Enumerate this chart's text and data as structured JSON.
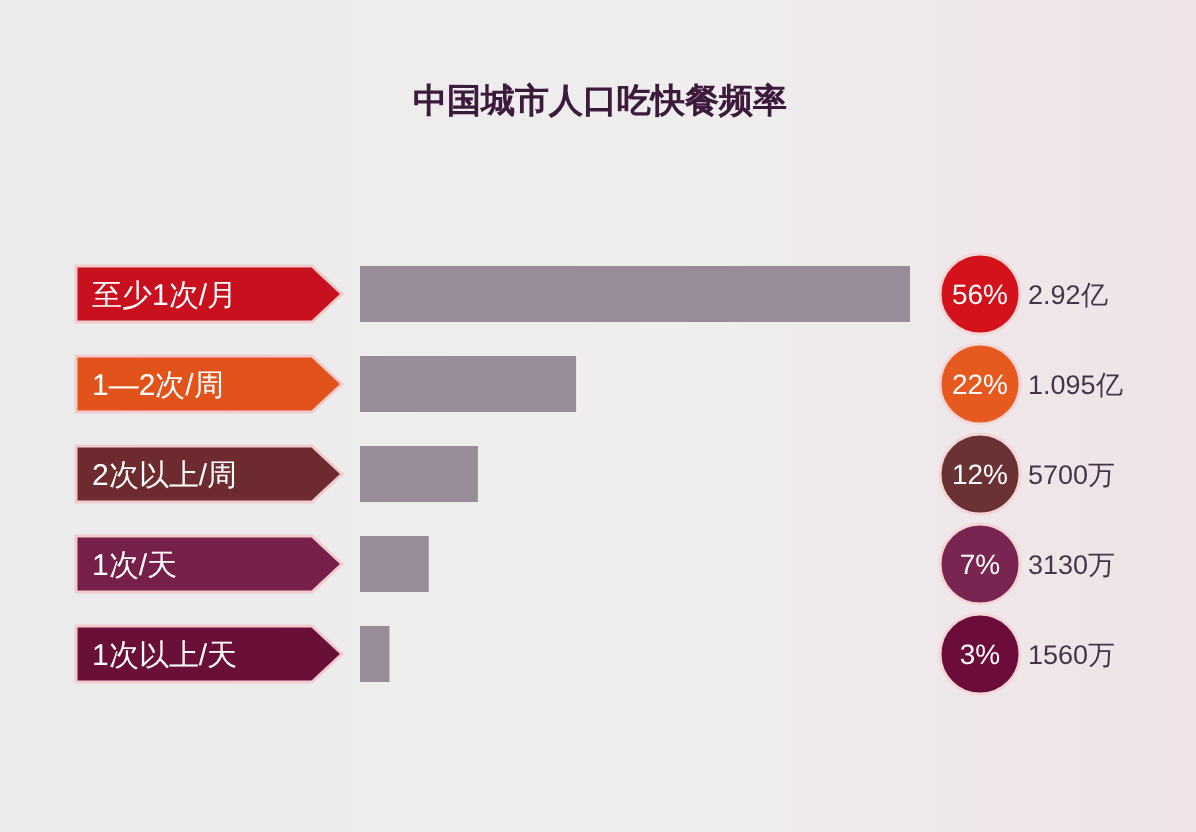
{
  "chart_data": {
    "type": "bar",
    "orientation": "horizontal",
    "title": "中国城市人口吃快餐频率",
    "categories": [
      "至少1次/月",
      "1—2次/周",
      "2次以上/周",
      "1次/天",
      "1次以上/天"
    ],
    "values": [
      56,
      22,
      12,
      7,
      3
    ],
    "color": "#978c98",
    "value_labels": [
      "56%",
      "22%",
      "12%",
      "7%",
      "3%"
    ],
    "annotations": [
      "2.92亿",
      "1.095亿",
      "5700万",
      "3130万",
      "1560万"
    ]
  }
}
